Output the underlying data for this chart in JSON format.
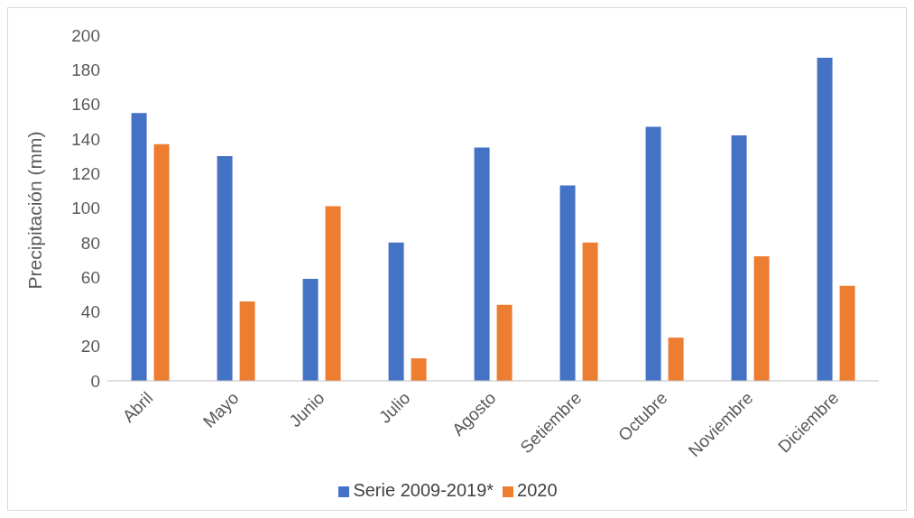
{
  "chart_data": {
    "type": "bar",
    "ylabel": "Precipitación (mm)",
    "categories": [
      "Abril",
      "Mayo",
      "Junio",
      "Julio",
      "Agosto",
      "Setiembre",
      "Octubre",
      "Noviembre",
      "Diciembre"
    ],
    "series": [
      {
        "name": "Serie 2009-2019*",
        "color": "#4472c4",
        "values": [
          155,
          130,
          59,
          80,
          135,
          113,
          147,
          142,
          187
        ]
      },
      {
        "name": "2020",
        "color": "#ed7d31",
        "values": [
          137,
          46,
          101,
          13,
          44,
          80,
          25,
          72,
          55
        ]
      }
    ],
    "ylim": [
      0,
      200
    ],
    "yticks": [
      0,
      20,
      40,
      60,
      80,
      100,
      120,
      140,
      160,
      180,
      200
    ],
    "grid": false,
    "legend": "bottom"
  }
}
